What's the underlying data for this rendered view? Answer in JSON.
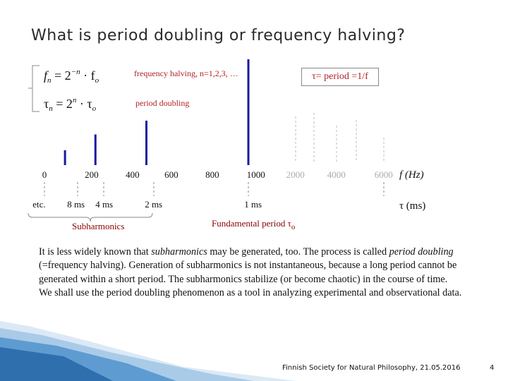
{
  "slide": {
    "title": "What is period doubling or frequency halving?",
    "page_number": "4",
    "footer": "Finnish Society for Natural Philosophy, 21.05.2016"
  },
  "formulas": {
    "f_lhs": "f",
    "f_sub": "n",
    "f_eq": " = 2",
    "f_exp": "−n",
    "f_dot": " · f",
    "f_sub2": "o",
    "t_lhs": "τ",
    "t_sub": "n",
    "t_eq": " = 2",
    "t_exp": "n",
    "t_dot": " · τ",
    "t_sub2": "o"
  },
  "labels": {
    "frequency_halving": "frequency halving, n=1,2,3, …",
    "period_doubling": "period doubling",
    "tau_def": "τ= period =1/f",
    "fundamental": "Fundamental period τ",
    "fundamental_sub": "o",
    "subharmonics": "Subharmonics"
  },
  "freq_axis": {
    "ticks": [
      "0",
      "200",
      "400",
      "600",
      "800",
      "1000",
      "2000",
      "4000",
      "6000"
    ],
    "unit": "f (Hz)"
  },
  "period_axis": {
    "ticks": [
      "etc.",
      "8 ms",
      "4 ms",
      "2 ms",
      "1 ms"
    ],
    "unit": "τ (ms)"
  },
  "spectrum": {
    "lines": [
      {
        "f": 125,
        "height": 0.14
      },
      {
        "f": 250,
        "height": 0.29
      },
      {
        "f": 500,
        "height": 0.42
      },
      {
        "f": 1000,
        "height": 1.0
      }
    ],
    "color": "#1a1aa0"
  },
  "paragraph": {
    "p1_a": "It is less widely known that ",
    "p1_b": "subharmonics",
    "p1_c": " may be generated, too. The process is called ",
    "p1_d": "period doubling",
    "p1_e": " (=frequency halving). Generation of subharmonics is not instantaneous, because a long period cannot be generated within a short period. The subharmonics stabilize (or become chaotic) in the course of time.",
    "p2": "We shall use the period doubling phenomenon as a tool in analyzing experimental and observational data."
  },
  "colors": {
    "accent_red": "#b22222",
    "dark_red": "#8b0000",
    "spectrum_blue": "#1a1aa0",
    "swoosh_blue": "#3d87c4"
  }
}
